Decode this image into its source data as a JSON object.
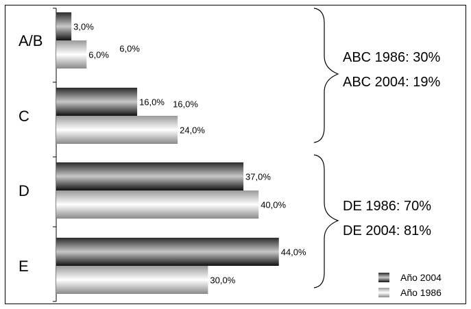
{
  "chart_data": {
    "type": "bar",
    "orientation": "horizontal",
    "categories": [
      "A/B",
      "C",
      "D",
      "E"
    ],
    "series": [
      {
        "name": "Año 2004",
        "values": [
          3.0,
          16.0,
          37.0,
          44.0
        ],
        "labels": [
          "3,0%",
          "16,0%",
          "37,0%",
          "44,0%"
        ],
        "color": "#1a1a1a"
      },
      {
        "name": "Año 1986",
        "values": [
          6.0,
          24.0,
          40.0,
          30.0
        ],
        "labels": [
          "6,0%",
          "24,0%",
          "40,0%",
          "30,0%"
        ],
        "color": "#bdbdbd"
      }
    ],
    "extra_labels": [
      {
        "category": "A/B",
        "text": "6,0%"
      },
      {
        "category": "C",
        "text": "16,0%"
      }
    ],
    "xlim": [
      0,
      50
    ],
    "legend_position": "bottom-right",
    "annotations": [
      {
        "group": [
          "A/B",
          "C"
        ],
        "lines": [
          "ABC 1986: 30%",
          "ABC 2004: 19%"
        ]
      },
      {
        "group": [
          "D",
          "E"
        ],
        "lines": [
          "DE 1986: 70%",
          "DE 2004: 81%"
        ]
      }
    ]
  }
}
